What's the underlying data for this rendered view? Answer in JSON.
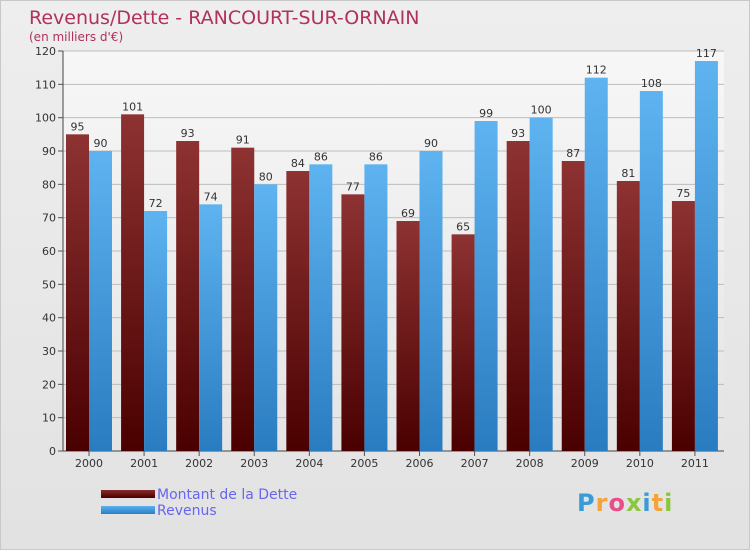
{
  "header": {
    "title": "Revenus/Dette - RANCOURT-SUR-ORNAIN",
    "subtitle": "(en milliers d'€)"
  },
  "chart_data": {
    "type": "bar",
    "categories": [
      "2000",
      "2001",
      "2002",
      "2003",
      "2004",
      "2005",
      "2006",
      "2007",
      "2008",
      "2009",
      "2010",
      "2011"
    ],
    "series": [
      {
        "name": "Montant de la Dette",
        "values": [
          95,
          101,
          93,
          91,
          84,
          77,
          69,
          65,
          93,
          87,
          81,
          75
        ],
        "color": "#7a1c1c"
      },
      {
        "name": "Revenus",
        "values": [
          90,
          72,
          74,
          80,
          86,
          86,
          90,
          99,
          100,
          112,
          108,
          117
        ],
        "color": "#4aa3e6"
      }
    ],
    "ylim": [
      0,
      120
    ],
    "yticks": [
      0,
      10,
      20,
      30,
      40,
      50,
      60,
      70,
      80,
      90,
      100,
      110,
      120
    ],
    "grid": true,
    "legend": "bottom-left"
  },
  "logo": {
    "letters": [
      "P",
      "r",
      "o",
      "x",
      "i",
      "t",
      "i"
    ],
    "colors": [
      "#3a9bd9",
      "#f2a33a",
      "#e94d8a",
      "#8cc63f",
      "#3a9bd9",
      "#f2a33a",
      "#8cc63f"
    ]
  }
}
